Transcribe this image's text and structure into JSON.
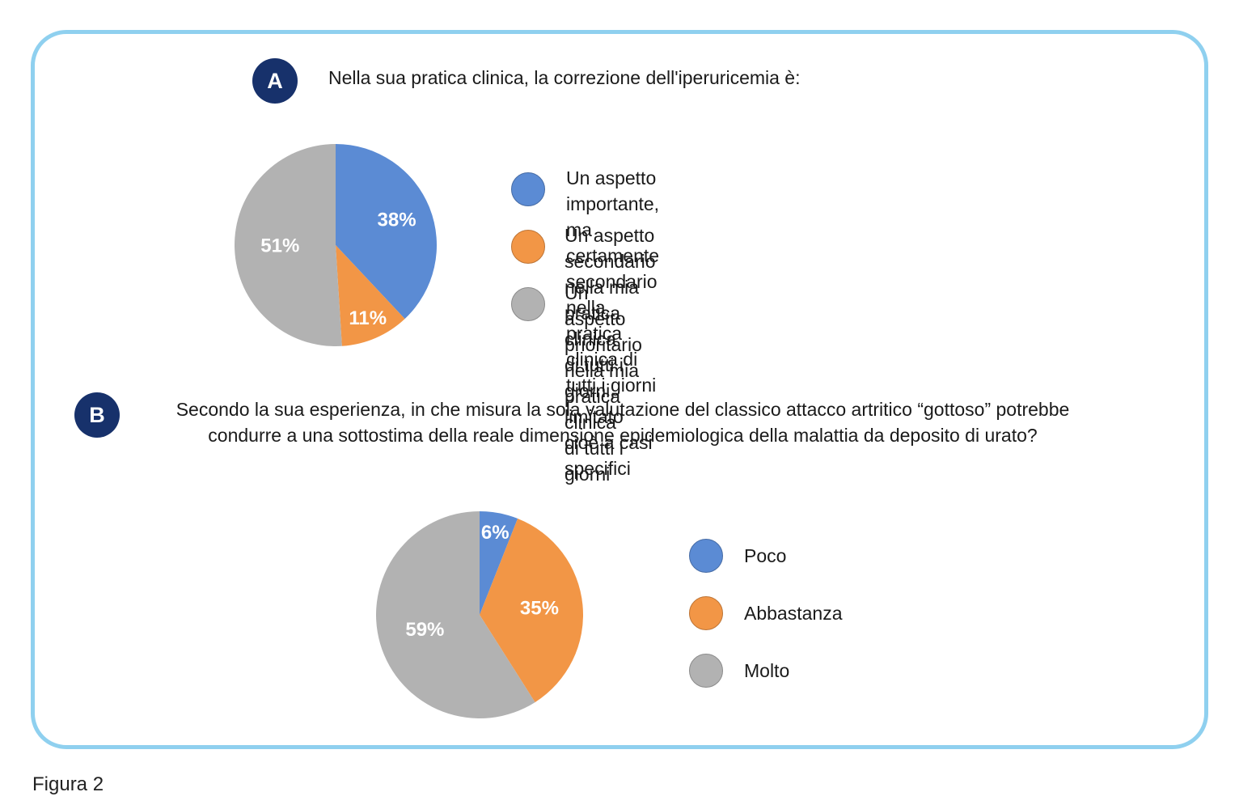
{
  "chart_data": [
    {
      "type": "pie",
      "badge": "A",
      "title": "Nella sua pratica clinica, la correzione dell'iperuricemia è:",
      "categories": [
        "Un aspetto importante, ma certamente secondario nella pratica clinica di tutti i giorni",
        "Un aspetto secondario nella mia pratica clinica di tutti i giorni, limitato cioè a casi specifici",
        "Un aspetto prioritario nella mia pratica clinica di tutti i giorni"
      ],
      "legend_lines": [
        [
          "Un aspetto importante, ma certamente",
          "secondario nella pratica clinica di tutti i giorni"
        ],
        [
          "Un aspetto secondario nella mia pratica clinica",
          "di tutti i giorni, limitato cioè a casi specifici"
        ],
        [
          "Un aspetto prioritario nella mia pratica clinica",
          "di tutti i giorni"
        ]
      ],
      "values": [
        38,
        11,
        51
      ],
      "data_labels": [
        "38%",
        "11%",
        "51%"
      ],
      "unit": "%",
      "colors": [
        "#5b8bd4",
        "#f29646",
        "#b2b2b2"
      ],
      "legend_position": "right"
    },
    {
      "type": "pie",
      "badge": "B",
      "title_lines": [
        "Secondo la sua esperienza, in che misura la sola valutazione del classico attacco artritico “gottoso” potrebbe",
        "condurre a una sottostima della reale dimensione epidemiologica della malattia da deposito di urato?"
      ],
      "categories": [
        "Poco",
        "Abbastanza",
        "Molto"
      ],
      "values": [
        6,
        35,
        59
      ],
      "data_labels": [
        "6%",
        "35%",
        "59%"
      ],
      "unit": "%",
      "colors": [
        "#5b8bd4",
        "#f29646",
        "#b2b2b2"
      ],
      "legend_position": "right"
    }
  ],
  "caption": "Figura 2"
}
